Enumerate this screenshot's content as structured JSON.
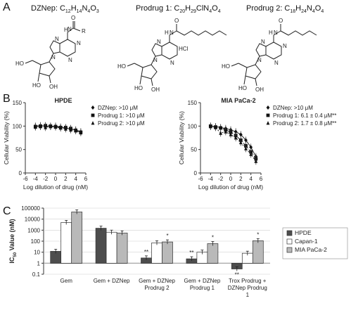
{
  "panels": {
    "a": "A",
    "b": "B",
    "c": "C"
  },
  "structures": [
    {
      "name": "DZNep",
      "formula_main": ": C",
      "f": [
        "12",
        "H",
        "14",
        "N",
        "4",
        "O",
        "3"
      ],
      "r_label": "R"
    },
    {
      "name": "Prodrug 1",
      "formula_main": ": C",
      "f": [
        "20",
        "H",
        "29",
        "ClN",
        "4",
        "O",
        "4"
      ],
      "nh_label": "N",
      "h_label": "H",
      "hcl_label": "HCl"
    },
    {
      "name": "Prodrug 2",
      "formula_main": ": C",
      "f": [
        "18",
        "H",
        "24",
        "N",
        "4",
        "O",
        "4"
      ],
      "nh_label": "N",
      "h_label": "H"
    }
  ],
  "chart_data": [
    {
      "type": "line",
      "title": "HPDE",
      "xlabel": "Log dilution of drug (nM)",
      "ylabel": "Cellular Viability (%)",
      "xlim": [
        -6,
        6
      ],
      "ylim": [
        0,
        150
      ],
      "xticks": [
        -6,
        -4,
        -2,
        0,
        2,
        4,
        6
      ],
      "yticks": [
        0,
        50,
        100,
        150
      ],
      "legend_position": "top-right",
      "series": [
        {
          "name": "DZNep: >10 μM",
          "marker": "diamond",
          "x": [
            -4,
            -3,
            -2,
            -1,
            0,
            1,
            2,
            3,
            4,
            5
          ],
          "y": [
            100,
            101,
            100,
            99,
            100,
            98,
            96,
            94,
            92,
            88
          ]
        },
        {
          "name": "Prodrug 1: >10 μM",
          "marker": "square",
          "x": [
            -4,
            -3,
            -2,
            -1,
            0,
            1,
            2,
            3,
            4,
            5
          ],
          "y": [
            99,
            100,
            101,
            100,
            99,
            97,
            97,
            95,
            91,
            87
          ]
        },
        {
          "name": "Prodrug 2: >10 μM",
          "marker": "triangle",
          "x": [
            -4,
            -3,
            -2,
            -1,
            0,
            1,
            2,
            3,
            4,
            5
          ],
          "y": [
            98,
            99,
            97,
            99,
            98,
            96,
            94,
            92,
            90,
            86
          ]
        }
      ]
    },
    {
      "type": "line",
      "title": "MIA PaCa-2",
      "xlabel": "Log dilution of drug (nM)",
      "ylabel": "Cellular Viability (%)",
      "xlim": [
        -6,
        6
      ],
      "ylim": [
        0,
        150
      ],
      "xticks": [
        -6,
        -4,
        -2,
        0,
        2,
        4,
        6
      ],
      "yticks": [
        0,
        50,
        100,
        150
      ],
      "legend_position": "top-right",
      "series": [
        {
          "name": "DZNep: >10 μM",
          "marker": "diamond",
          "x": [
            -4,
            -3,
            -2,
            -1,
            0,
            1,
            2,
            3,
            4,
            5
          ],
          "y": [
            100,
            99,
            97,
            95,
            92,
            88,
            82,
            70,
            55,
            35
          ]
        },
        {
          "name": "Prodrug 1: 6.1 ± 0.4 μM**",
          "marker": "square",
          "x": [
            -4,
            -3,
            -2,
            -1,
            0,
            1,
            2,
            3,
            4,
            5
          ],
          "y": [
            100,
            98,
            96,
            92,
            87,
            80,
            70,
            58,
            45,
            30
          ]
        },
        {
          "name": "Prodrug 2: 1.7 ± 0.8 μM**",
          "marker": "triangle",
          "x": [
            -4,
            -3,
            -2,
            -1,
            0,
            1,
            2,
            3,
            4,
            5
          ],
          "y": [
            99,
            97,
            85,
            88,
            82,
            75,
            65,
            52,
            40,
            25
          ]
        }
      ]
    },
    {
      "type": "bar",
      "ylabel_main": "IC",
      "ylabel_sub": "50",
      "ylabel_rest": " Value (nM)",
      "log_scale": true,
      "ylim": [
        0.1,
        100000
      ],
      "yticks": [
        "0.1",
        "1",
        "10",
        "100",
        "1000",
        "10000",
        "100000"
      ],
      "legend_position": "right",
      "categories": [
        [
          "Gem"
        ],
        [
          "Gem + DZNep"
        ],
        [
          "Gem + DZNep",
          "Prodrug 2"
        ],
        [
          "Gem + DZNep",
          "Prodrug 1"
        ],
        [
          "Trox Prodrug +",
          "DZNep Prodrug",
          "1"
        ]
      ],
      "series": [
        {
          "name": "HPDE",
          "color": "#4d4d4d",
          "values": [
            12,
            1500,
            3,
            2.5,
            0.3
          ]
        },
        {
          "name": "Capan-1",
          "color": "#ffffff",
          "values": [
            5000,
            650,
            70,
            10,
            8
          ]
        },
        {
          "name": "MIA PaCa-2",
          "color": "#b9b9b9",
          "values": [
            45000,
            550,
            85,
            60,
            110
          ]
        }
      ],
      "annotations": [
        {
          "cat": 2,
          "series": 0,
          "text": "**"
        },
        {
          "cat": 2,
          "series": 2,
          "text": "*"
        },
        {
          "cat": 3,
          "series": 0,
          "text": "**"
        },
        {
          "cat": 3,
          "series": 2,
          "text": "*"
        },
        {
          "cat": 4,
          "series": 0,
          "text": "**"
        },
        {
          "cat": 4,
          "series": 2,
          "text": "*"
        }
      ]
    }
  ]
}
